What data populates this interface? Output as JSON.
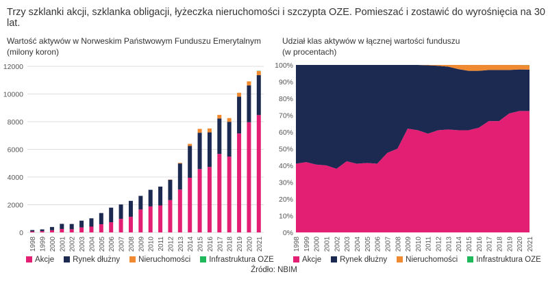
{
  "title": "Trzy szklanki akcji, szklanka obligacji, łyżeczka nieruchomości i szczypta OZE. Pomieszać i zostawić do wyrośnięcia na 30 lat.",
  "source": "Źródło: NBIM",
  "colors": {
    "Akcje": "#e31f73",
    "Rynek dłużny": "#1c2951",
    "Nieruchomości": "#f08a30",
    "Infrastruktura OZE": "#1fb85a"
  },
  "chart_data": [
    {
      "type": "bar",
      "stacked": true,
      "title": "Wartość aktywów w Norweskim Państwowym Funduszu Emerytalnym",
      "subtitle": "(milony koron)",
      "ylim": [
        0,
        12000
      ],
      "yticks": [
        0,
        2000,
        4000,
        6000,
        8000,
        10000,
        12000
      ],
      "grid": true,
      "legend": "bottom",
      "categories": [
        "1998",
        "1999",
        "2000",
        "2001",
        "2002",
        "2003",
        "2004",
        "2005",
        "2006",
        "2007",
        "2008",
        "2009",
        "2010",
        "2011",
        "2012",
        "2013",
        "2014",
        "2015",
        "2016",
        "2017",
        "2018",
        "2019",
        "2020",
        "2021"
      ],
      "series": [
        {
          "name": "Akcje",
          "values": [
            70,
            90,
            160,
            250,
            230,
            360,
            420,
            590,
            740,
            980,
            1130,
            1660,
            1880,
            1950,
            2340,
            3100,
            3950,
            4580,
            4730,
            5670,
            5480,
            7150,
            7960,
            8480
          ]
        },
        {
          "name": "Rynek dłużny",
          "values": [
            100,
            130,
            230,
            370,
            380,
            490,
            600,
            810,
            1050,
            1040,
            1150,
            980,
            1200,
            1360,
            1460,
            1880,
            2300,
            2620,
            2500,
            2560,
            2510,
            2660,
            2660,
            2880
          ]
        },
        {
          "name": "Nieruchomości",
          "values": [
            0,
            0,
            0,
            0,
            0,
            0,
            0,
            0,
            0,
            0,
            0,
            0,
            0,
            0,
            20,
            50,
            150,
            280,
            280,
            260,
            270,
            280,
            290,
            300
          ]
        },
        {
          "name": "Infrastruktura OZE",
          "values": [
            0,
            0,
            0,
            0,
            0,
            0,
            0,
            0,
            0,
            0,
            0,
            0,
            0,
            0,
            0,
            0,
            0,
            0,
            0,
            0,
            0,
            0,
            0,
            20
          ]
        }
      ]
    },
    {
      "type": "area",
      "stacked": true,
      "title": "Udział klas aktywów w łącznej wartości funduszu",
      "subtitle": "(w procentach)",
      "ylim": [
        0,
        100
      ],
      "yticks": [
        "0%",
        "10%",
        "20%",
        "30%",
        "40%",
        "50%",
        "60%",
        "70%",
        "80%",
        "90%",
        "100%"
      ],
      "grid": false,
      "legend": "bottom",
      "categories": [
        "1998",
        "1999",
        "2000",
        "2001",
        "2002",
        "2003",
        "2004",
        "2005",
        "2006",
        "2007",
        "2008",
        "2009",
        "2010",
        "2011",
        "2012",
        "2013",
        "2014",
        "2015",
        "2016",
        "2017",
        "2018",
        "2019",
        "2020",
        "2021"
      ],
      "series": [
        {
          "name": "Akcje",
          "values": [
            41,
            42,
            40.5,
            40,
            38,
            42.5,
            41,
            41.5,
            41,
            47.5,
            50,
            62,
            61,
            59,
            61,
            61.5,
            61,
            61,
            62.5,
            66.5,
            66.5,
            71,
            72.5,
            72.5
          ]
        },
        {
          "name": "Rynek dłużny",
          "values": [
            59,
            58,
            59.5,
            60,
            62,
            57.5,
            59,
            58.5,
            59,
            52.5,
            50,
            38,
            39,
            40.8,
            38.5,
            37.5,
            36.5,
            35.5,
            34,
            30.5,
            30.5,
            26,
            24.8,
            24.7
          ]
        },
        {
          "name": "Nieruchomości",
          "values": [
            0,
            0,
            0,
            0,
            0,
            0,
            0,
            0,
            0,
            0,
            0,
            0,
            0,
            0.2,
            0.5,
            1,
            2.5,
            3.5,
            3.5,
            3,
            3,
            3,
            2.7,
            2.7
          ]
        },
        {
          "name": "Infrastruktura OZE",
          "values": [
            0,
            0,
            0,
            0,
            0,
            0,
            0,
            0,
            0,
            0,
            0,
            0,
            0,
            0,
            0,
            0,
            0,
            0,
            0,
            0,
            0,
            0,
            0,
            0.1
          ]
        }
      ]
    }
  ]
}
